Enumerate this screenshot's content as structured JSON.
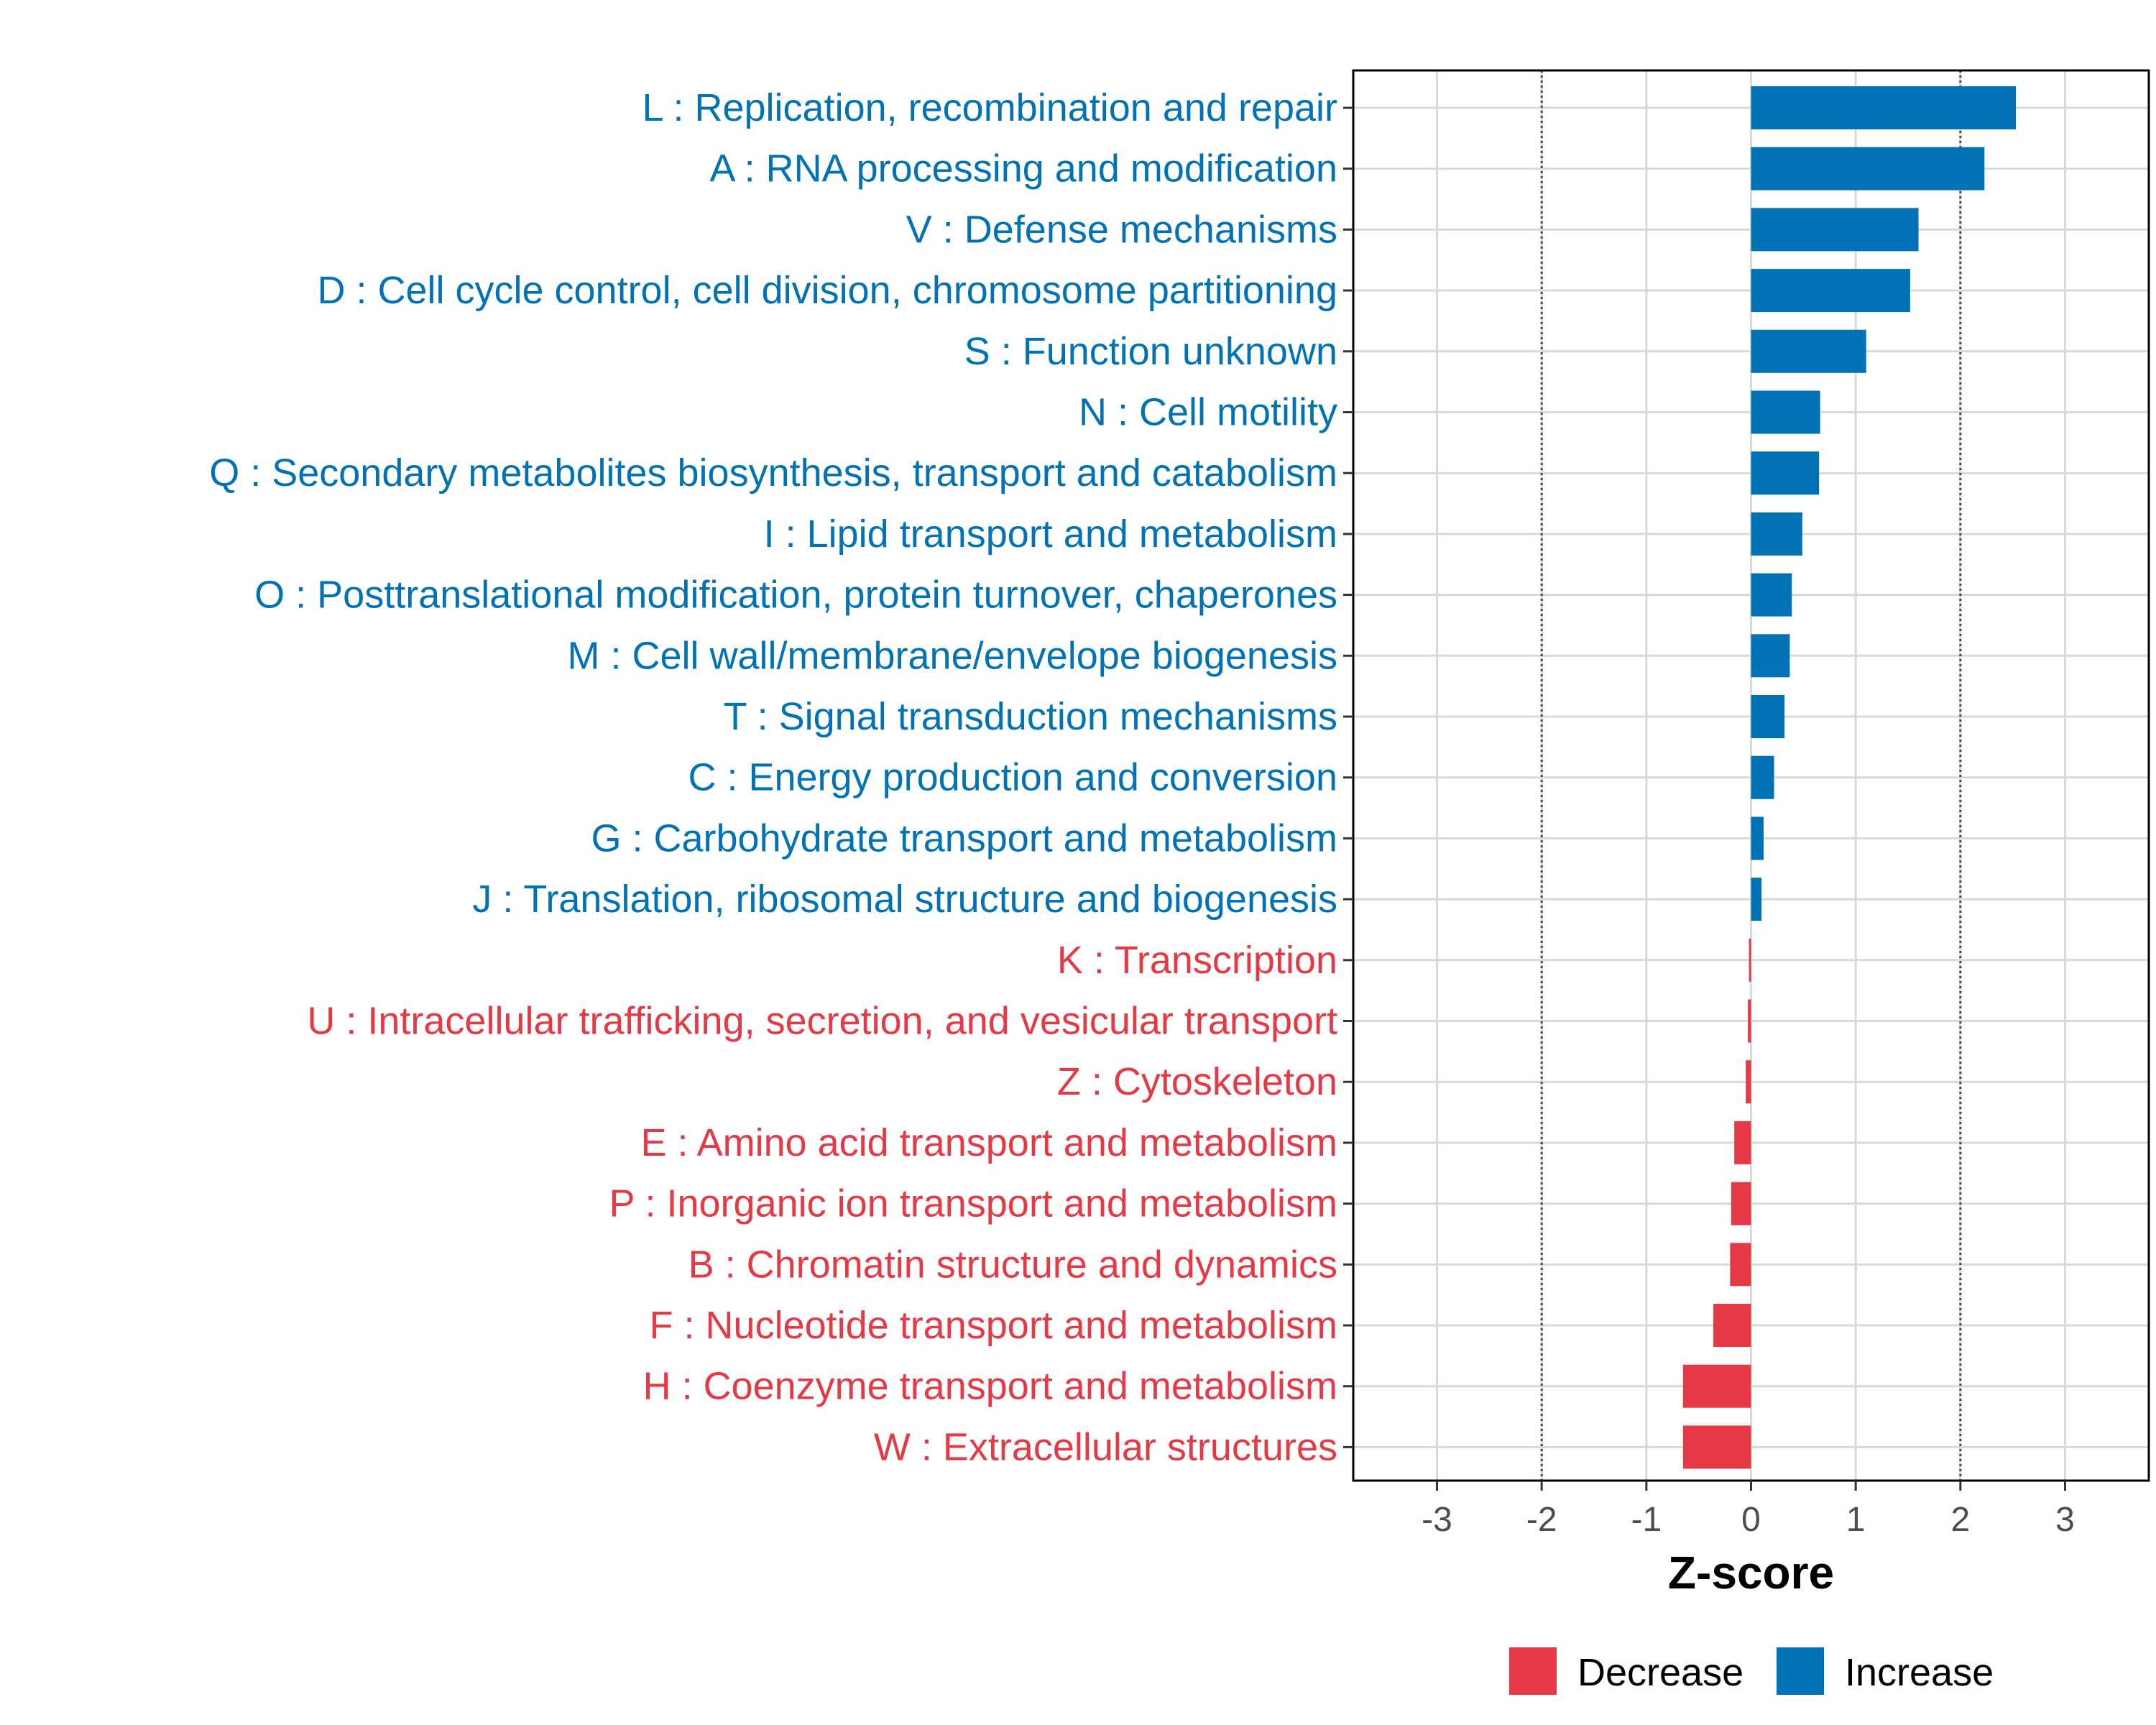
{
  "chart_data": {
    "type": "bar",
    "orientation": "horizontal",
    "xlabel": "Z-score",
    "xlim": [
      -3.8,
      3.8
    ],
    "xticks": [
      -3,
      -2,
      -1,
      0,
      1,
      2,
      3
    ],
    "xtick_labels": [
      "-3",
      "-2",
      "-1",
      "0",
      "1",
      "2",
      "3"
    ],
    "reference_lines": [
      -2,
      2
    ],
    "grid": true,
    "colors": {
      "Increase": "#0072b5",
      "Decrease": "#e63946"
    },
    "categories": [
      "L : Replication, recombination and repair",
      "A : RNA processing and modification",
      "V : Defense mechanisms",
      "D : Cell cycle control, cell division, chromosome partitioning",
      "S : Function unknown",
      "N : Cell motility",
      "Q : Secondary metabolites biosynthesis, transport and catabolism",
      "I : Lipid transport and metabolism",
      "O : Posttranslational modification, protein turnover, chaperones",
      "M : Cell wall/membrane/envelope biogenesis",
      "T : Signal transduction mechanisms",
      "C : Energy production and conversion",
      "G : Carbohydrate transport and metabolism",
      "J : Translation, ribosomal structure and biogenesis",
      "K : Transcription",
      "U : Intracellular trafficking, secretion, and vesicular transport",
      "Z : Cytoskeleton",
      "E : Amino acid transport and metabolism",
      "P : Inorganic ion transport and metabolism",
      "B : Chromatin structure and dynamics",
      "F : Nucleotide transport and metabolism",
      "H : Coenzyme transport and metabolism",
      "W : Extracellular structures"
    ],
    "values": [
      2.53,
      2.23,
      1.6,
      1.52,
      1.1,
      0.66,
      0.65,
      0.49,
      0.39,
      0.37,
      0.32,
      0.22,
      0.12,
      0.1,
      -0.02,
      -0.03,
      -0.05,
      -0.16,
      -0.19,
      -0.2,
      -0.36,
      -0.65,
      -0.65
    ],
    "groups": [
      "Increase",
      "Increase",
      "Increase",
      "Increase",
      "Increase",
      "Increase",
      "Increase",
      "Increase",
      "Increase",
      "Increase",
      "Increase",
      "Increase",
      "Increase",
      "Increase",
      "Decrease",
      "Decrease",
      "Decrease",
      "Decrease",
      "Decrease",
      "Decrease",
      "Decrease",
      "Decrease",
      "Decrease"
    ],
    "legend": {
      "position": "bottom",
      "items": [
        {
          "label": "Decrease",
          "color": "#e63946"
        },
        {
          "label": "Increase",
          "color": "#0072b5"
        }
      ]
    }
  }
}
